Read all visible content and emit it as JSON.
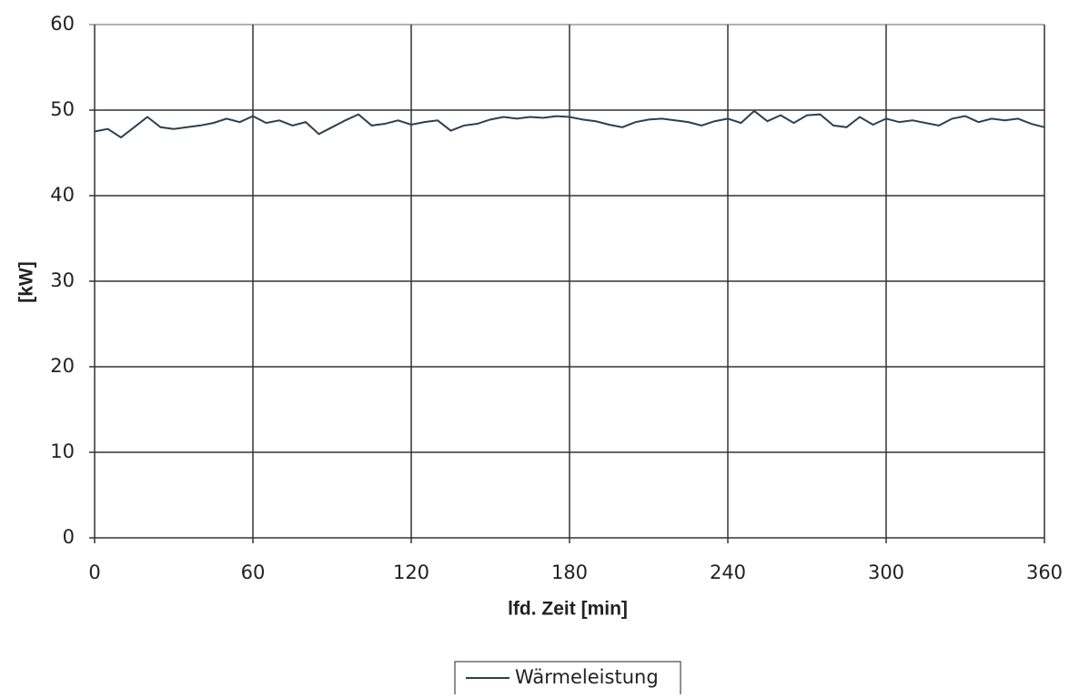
{
  "chart_data": {
    "type": "line",
    "y_label": "[kW]",
    "x_label": "lfd. Zeit [min]",
    "x": [
      0,
      5,
      10,
      15,
      20,
      25,
      30,
      35,
      40,
      45,
      50,
      55,
      60,
      65,
      70,
      75,
      80,
      85,
      90,
      95,
      100,
      105,
      110,
      115,
      120,
      125,
      130,
      135,
      140,
      145,
      150,
      155,
      160,
      165,
      170,
      175,
      180,
      185,
      190,
      195,
      200,
      205,
      210,
      215,
      220,
      225,
      230,
      235,
      240,
      245,
      250,
      255,
      260,
      265,
      270,
      275,
      280,
      285,
      290,
      295,
      300,
      305,
      310,
      315,
      320,
      325,
      330,
      335,
      340,
      345,
      350,
      355,
      360
    ],
    "series": [
      {
        "name": "Wärmeleistung",
        "color": "#2b4050",
        "values": [
          47.5,
          47.8,
          46.8,
          48.0,
          49.2,
          48.0,
          47.8,
          48.0,
          48.2,
          48.5,
          49.0,
          48.6,
          49.3,
          48.5,
          48.8,
          48.2,
          48.6,
          47.2,
          48.0,
          48.8,
          49.5,
          48.2,
          48.4,
          48.8,
          48.3,
          48.6,
          48.8,
          47.6,
          48.2,
          48.4,
          48.9,
          49.2,
          49.0,
          49.2,
          49.1,
          49.3,
          49.2,
          48.9,
          48.7,
          48.3,
          48.0,
          48.6,
          48.9,
          49.0,
          48.8,
          48.6,
          48.2,
          48.7,
          49.0,
          48.5,
          49.9,
          48.7,
          49.4,
          48.5,
          49.4,
          49.5,
          48.2,
          48.0,
          49.2,
          48.3,
          49.0,
          48.6,
          48.8,
          48.5,
          48.2,
          49.0,
          49.3,
          48.6,
          49.0,
          48.8,
          49.0,
          48.4,
          48.0
        ]
      }
    ],
    "xlim": [
      0,
      360
    ],
    "xticks": [
      0,
      60,
      120,
      180,
      240,
      300,
      360
    ],
    "ylim": [
      0,
      60
    ],
    "yticks": [
      0,
      10,
      20,
      30,
      40,
      50,
      60
    ],
    "grid": true
  }
}
